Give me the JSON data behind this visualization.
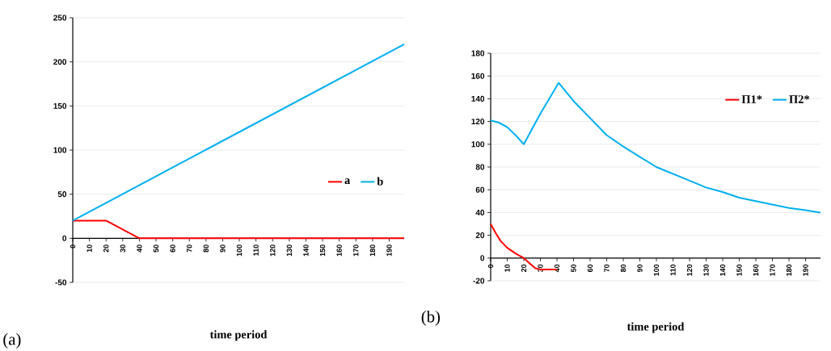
{
  "chart_data": [
    {
      "type": "line",
      "xlabel": "time period",
      "xlim": [
        0,
        199
      ],
      "xticks": [
        0,
        10,
        20,
        30,
        40,
        50,
        60,
        70,
        80,
        90,
        100,
        110,
        120,
        130,
        140,
        150,
        160,
        170,
        180,
        190
      ],
      "ylim": [
        -50,
        250
      ],
      "yticks": [
        -50,
        0,
        50,
        100,
        150,
        200,
        250
      ],
      "grid": "y",
      "legend": "right",
      "annotations": [
        "(a)"
      ],
      "series": [
        {
          "name": "a",
          "color": "#ff0000",
          "x": [
            0,
            20,
            40,
            199
          ],
          "values": [
            20,
            20,
            0,
            0
          ]
        },
        {
          "name": "b",
          "color": "#00b0f0",
          "x": [
            0,
            199
          ],
          "values": [
            20,
            220
          ]
        }
      ]
    },
    {
      "type": "line",
      "xlabel": "time period",
      "xlim": [
        0,
        199
      ],
      "xticks": [
        0,
        10,
        20,
        30,
        40,
        50,
        60,
        70,
        80,
        90,
        100,
        110,
        120,
        130,
        140,
        150,
        160,
        170,
        180,
        190
      ],
      "ylim": [
        -20,
        180
      ],
      "yticks": [
        -20,
        0,
        20,
        40,
        60,
        80,
        100,
        120,
        140,
        160,
        180
      ],
      "grid": "y",
      "legend": "top right",
      "annotations": [
        "(b)"
      ],
      "series": [
        {
          "name": "Π1*",
          "color": "#ff0000",
          "x": [
            0,
            3,
            6,
            10,
            15,
            20,
            23,
            27,
            30,
            40
          ],
          "values": [
            30,
            22,
            15,
            9,
            4,
            0,
            -4,
            -9,
            -10,
            -10
          ]
        },
        {
          "name": "Π2*",
          "color": "#00b0f0",
          "x": [
            0,
            5,
            10,
            15,
            20,
            30,
            41,
            50,
            60,
            70,
            80,
            90,
            100,
            110,
            120,
            130,
            140,
            150,
            160,
            170,
            180,
            190,
            199
          ],
          "values": [
            121,
            119,
            115,
            108,
            100,
            127,
            154,
            138,
            123,
            108,
            98,
            89,
            80,
            74,
            68,
            62,
            58,
            53,
            50,
            47,
            44,
            42,
            40
          ]
        }
      ]
    }
  ]
}
